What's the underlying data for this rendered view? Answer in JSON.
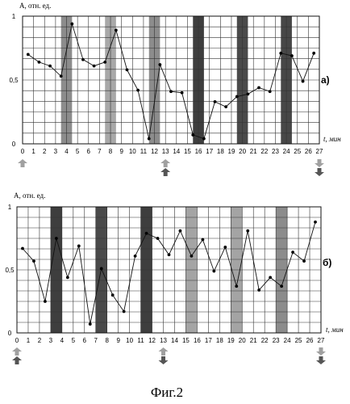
{
  "figure_caption": "Фиг.2",
  "chart_data": [
    {
      "type": "line",
      "panel_label": "а)",
      "ylabel": "А, отн. ед.",
      "xlabel": "t, мин",
      "ylim": [
        0,
        1
      ],
      "xlim": [
        0,
        27
      ],
      "y_ticks": [
        "0",
        "0,5",
        "1"
      ],
      "x_ticks": [
        "0",
        "1",
        "2",
        "3",
        "4",
        "5",
        "6",
        "7",
        "8",
        "9",
        "10",
        "11",
        "12",
        "13",
        "14",
        "15",
        "16",
        "17",
        "18",
        "19",
        "20",
        "21",
        "22",
        "23",
        "24",
        "25",
        "26",
        "27"
      ],
      "grid": true,
      "series": [
        {
          "x": [
            0.5,
            1.5,
            2.5,
            3.5,
            4.5,
            5.5,
            6.5,
            7.5,
            8.5,
            9.5,
            10.5,
            11.5,
            12.5,
            13.5,
            14.5,
            15.5,
            16.5,
            17.5,
            18.5,
            19.5,
            20.5,
            21.5,
            22.5,
            23.5,
            24.5,
            25.5,
            26.5
          ],
          "y": [
            0.7,
            0.64,
            0.61,
            0.53,
            0.94,
            0.66,
            0.61,
            0.64,
            0.89,
            0.58,
            0.42,
            0.04,
            0.62,
            0.41,
            0.4,
            0.07,
            0.04,
            0.33,
            0.29,
            0.37,
            0.39,
            0.44,
            0.41,
            0.71,
            0.69,
            0.49,
            0.71
          ]
        }
      ],
      "bands": [
        {
          "from": 3.5,
          "to": 4.5,
          "shade": "medium",
          "color": "#8c8c8c"
        },
        {
          "from": 7.5,
          "to": 8.5,
          "shade": "light",
          "color": "#a8a8a8"
        },
        {
          "from": 11.5,
          "to": 12.5,
          "shade": "medium",
          "color": "#8c8c8c"
        },
        {
          "from": 15.5,
          "to": 16.5,
          "shade": "dark",
          "color": "#3e3e3e"
        },
        {
          "from": 19.5,
          "to": 20.5,
          "shade": "dark",
          "color": "#4a4a4a"
        },
        {
          "from": 23.5,
          "to": 24.5,
          "shade": "dark",
          "color": "#474747"
        }
      ],
      "arrows": [
        {
          "x": 0,
          "kind": "up-light"
        },
        {
          "x": 13,
          "kind": "up-light-up-dark"
        },
        {
          "x": 27,
          "kind": "down-light-down-dark"
        }
      ]
    },
    {
      "type": "line",
      "panel_label": "б)",
      "ylabel": "А, отн. ед.",
      "xlabel": "t, мин",
      "ylim": [
        0,
        1
      ],
      "xlim": [
        0,
        27
      ],
      "y_ticks": [
        "0",
        "0,5",
        "1"
      ],
      "x_ticks": [
        "0",
        "1",
        "2",
        "3",
        "4",
        "5",
        "6",
        "7",
        "8",
        "9",
        "10",
        "11",
        "12",
        "13",
        "14",
        "15",
        "16",
        "17",
        "18",
        "19",
        "20",
        "21",
        "22",
        "23",
        "24",
        "25",
        "26",
        "27"
      ],
      "grid": true,
      "series": [
        {
          "x": [
            0.5,
            1.5,
            2.5,
            3.5,
            4.5,
            5.5,
            6.5,
            7.5,
            8.5,
            9.5,
            10.5,
            11.5,
            12.5,
            13.5,
            14.5,
            15.5,
            16.5,
            17.5,
            18.5,
            19.5,
            20.5,
            21.5,
            22.5,
            23.5,
            24.5,
            25.5,
            26.5
          ],
          "y": [
            0.67,
            0.57,
            0.25,
            0.75,
            0.44,
            0.69,
            0.07,
            0.51,
            0.3,
            0.17,
            0.61,
            0.79,
            0.75,
            0.62,
            0.81,
            0.61,
            0.74,
            0.49,
            0.68,
            0.37,
            0.81,
            0.34,
            0.44,
            0.37,
            0.64,
            0.57,
            0.88
          ]
        }
      ],
      "bands": [
        {
          "from": 3,
          "to": 4,
          "shade": "dark",
          "color": "#3e3e3e"
        },
        {
          "from": 7,
          "to": 8,
          "shade": "dark",
          "color": "#4a4a4a"
        },
        {
          "from": 11,
          "to": 12,
          "shade": "dark",
          "color": "#3e3e3e"
        },
        {
          "from": 15,
          "to": 16,
          "shade": "light",
          "color": "#a4a4a4"
        },
        {
          "from": 19,
          "to": 20,
          "shade": "light",
          "color": "#a4a4a4"
        },
        {
          "from": 23,
          "to": 24,
          "shade": "medium",
          "color": "#8c8c8c"
        }
      ],
      "arrows": [
        {
          "x": 0,
          "kind": "up-light-up-dark"
        },
        {
          "x": 13,
          "kind": "up-light-down-dark"
        },
        {
          "x": 27,
          "kind": "down-light-down-dark"
        }
      ]
    }
  ]
}
